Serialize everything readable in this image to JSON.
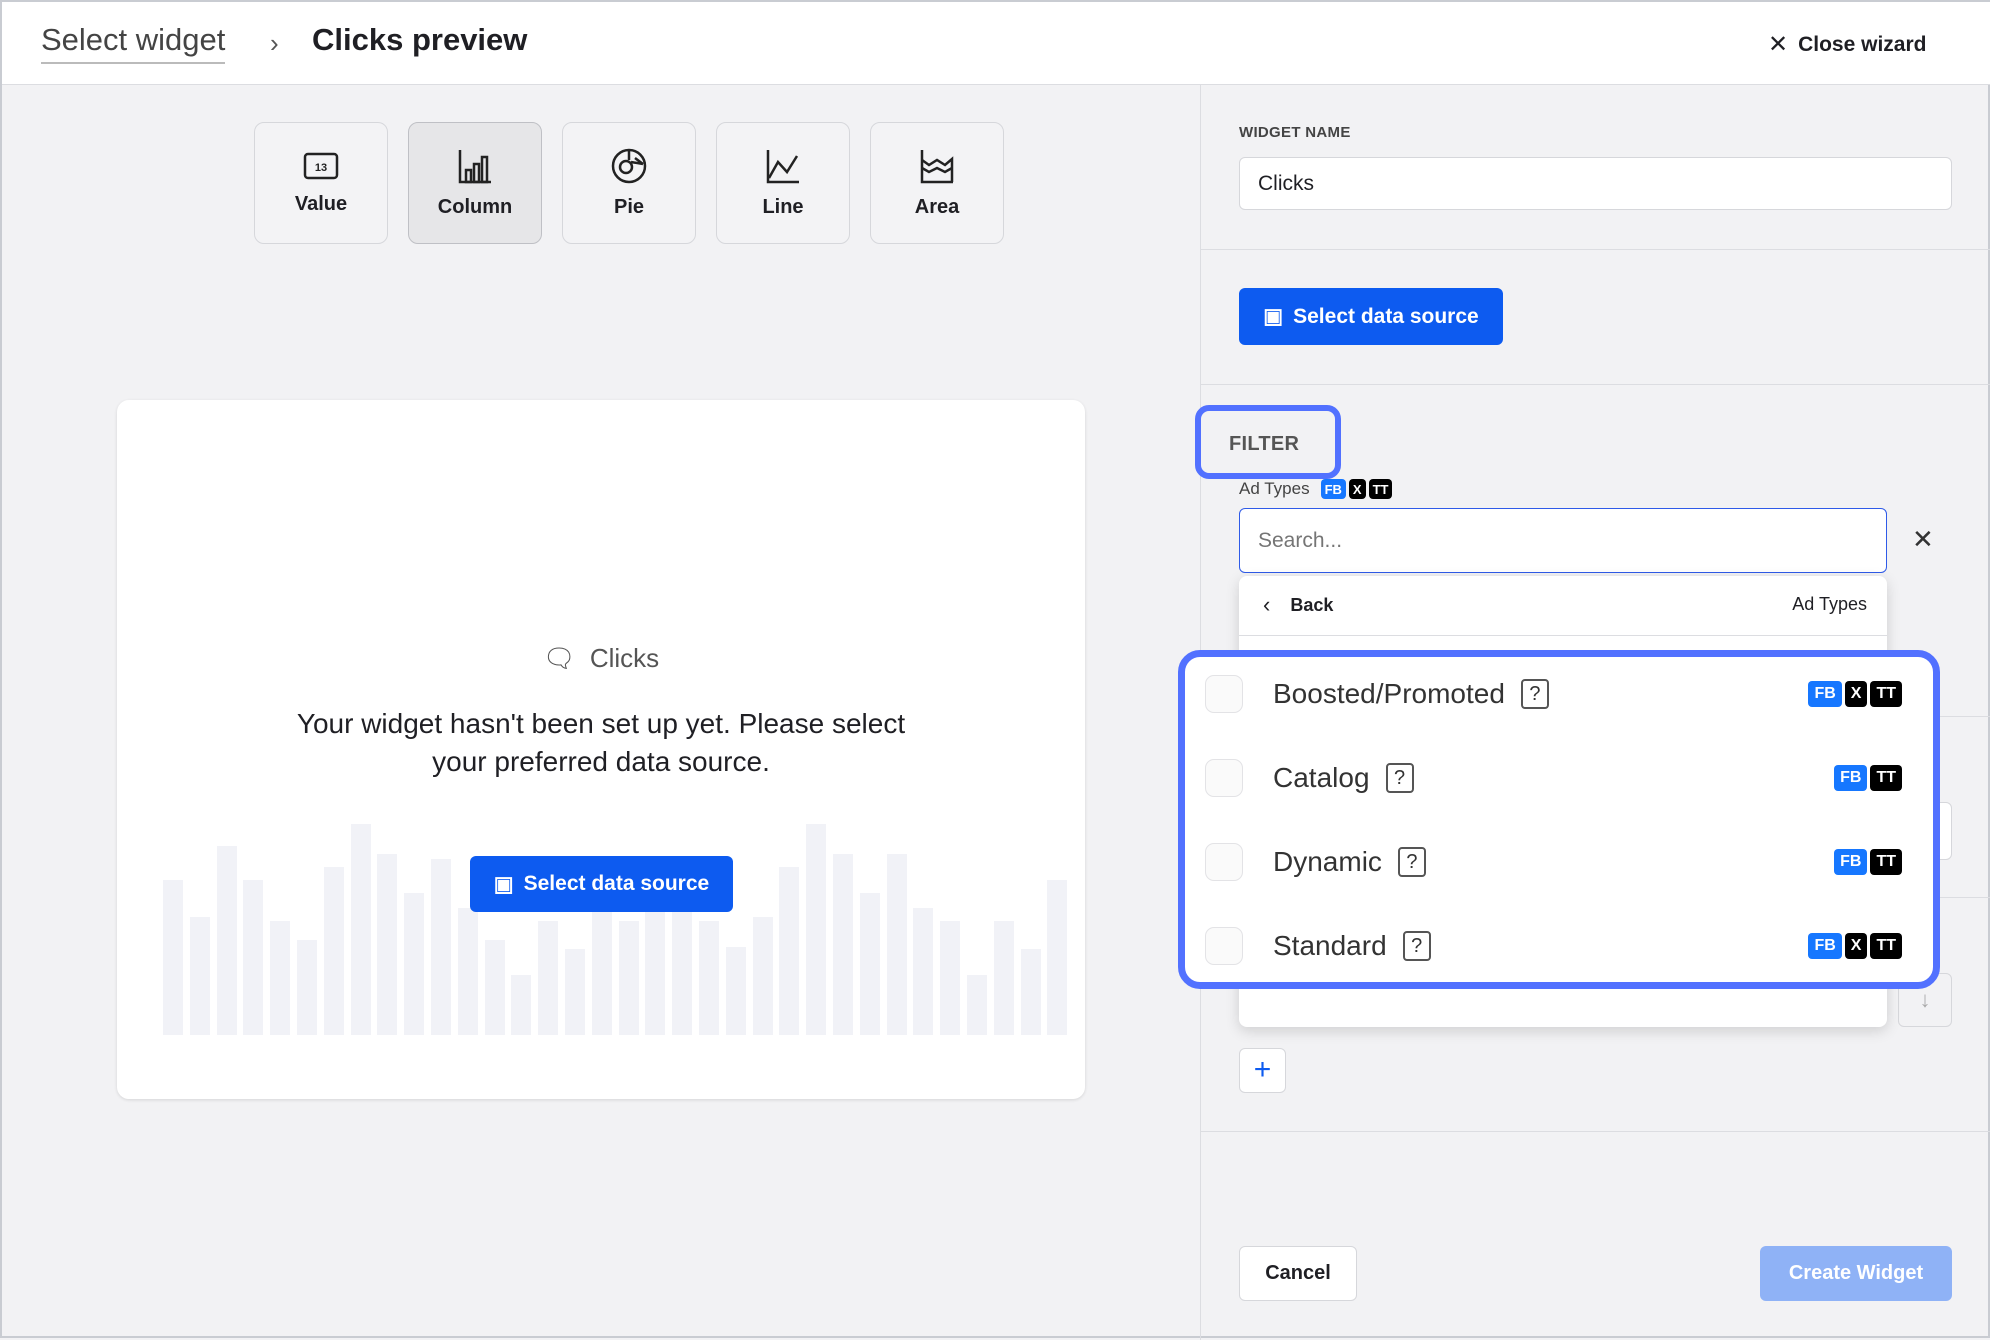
{
  "header": {
    "breadcrumb_parent": "Select widget",
    "title": "Clicks preview",
    "close_label": "Close wizard"
  },
  "widget_types": [
    {
      "label": "Value",
      "icon": "value-icon"
    },
    {
      "label": "Column",
      "icon": "column-chart-icon",
      "selected": true
    },
    {
      "label": "Pie",
      "icon": "pie-chart-icon"
    },
    {
      "label": "Line",
      "icon": "line-chart-icon"
    },
    {
      "label": "Area",
      "icon": "area-chart-icon"
    }
  ],
  "preview": {
    "title": "Clicks",
    "message": "Your widget hasn't been set up yet. Please select your preferred data source.",
    "button": "Select data source"
  },
  "panel": {
    "widget_name_label": "WIDGET NAME",
    "widget_name_value": "Clicks",
    "select_source": "Select data source",
    "filter_label": "FILTER",
    "ad_types_label": "Ad Types",
    "ad_types_badges": [
      "FB",
      "X",
      "TT"
    ],
    "search_placeholder": "Search...",
    "back": "Back",
    "dropdown_title": "Ad Types",
    "options": [
      {
        "label": "Boosted/Promoted",
        "badges": [
          "FB",
          "X",
          "TT"
        ]
      },
      {
        "label": "Catalog",
        "badges": [
          "FB",
          "TT"
        ]
      },
      {
        "label": "Dynamic",
        "badges": [
          "FB",
          "TT"
        ]
      },
      {
        "label": "Standard",
        "badges": [
          "FB",
          "X",
          "TT"
        ]
      }
    ],
    "cancel": "Cancel",
    "create": "Create Widget"
  },
  "colors": {
    "accent": "#0d5bf0",
    "highlight": "#5271ff",
    "fb": "#1677ff"
  }
}
